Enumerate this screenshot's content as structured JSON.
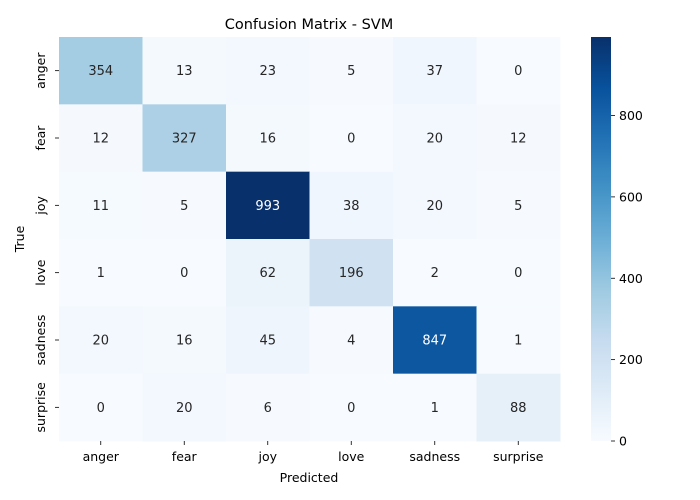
{
  "chart_data": {
    "type": "heatmap",
    "title": "Confusion Matrix - SVM",
    "xlabel": "Predicted",
    "ylabel": "True",
    "x_categories": [
      "anger",
      "fear",
      "joy",
      "love",
      "sadness",
      "surprise"
    ],
    "y_categories": [
      "anger",
      "fear",
      "joy",
      "love",
      "sadness",
      "surprise"
    ],
    "values": [
      [
        354,
        13,
        23,
        5,
        37,
        0
      ],
      [
        12,
        327,
        16,
        0,
        20,
        12
      ],
      [
        11,
        5,
        993,
        38,
        20,
        5
      ],
      [
        1,
        0,
        62,
        196,
        2,
        0
      ],
      [
        20,
        16,
        45,
        4,
        847,
        1
      ],
      [
        0,
        20,
        6,
        0,
        1,
        88
      ]
    ],
    "colormap": "Blues",
    "color_range": [
      0,
      993
    ],
    "colorbar_ticks": [
      0,
      200,
      400,
      600,
      800
    ],
    "annotations": true
  }
}
